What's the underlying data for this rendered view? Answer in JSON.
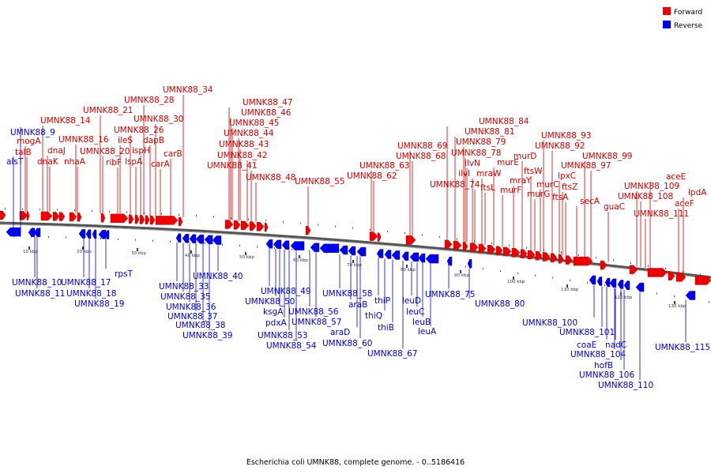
{
  "caption": "Escherichia coli UMNK88, complete genome. - 0..5186416",
  "legend": [
    {
      "label": "Forward",
      "color": "#ee0000"
    },
    {
      "label": "Reverse",
      "color": "#0000ee"
    }
  ],
  "ticks": [
    "10 kbp",
    "20 kbp",
    "30 kbp",
    "40 kbp",
    "50 kbp",
    "60 kbp",
    "70 kbp",
    "80 kbp",
    "90 kbp",
    "100 kbp",
    "110 kbp",
    "120 kbp",
    "130 kbp"
  ],
  "forward_labels": [
    "mogA",
    "talB",
    "dnaJ",
    "dnaK",
    "UMNK88_14",
    "UMNK88_16",
    "nhaA",
    "UMNK88_21",
    "UMNK88_20",
    "ribF",
    "ileS",
    "UMNK88_26",
    "lspA",
    "ispH",
    "UMNK88_28",
    "dapB",
    "UMNK88_30",
    "carA",
    "carB",
    "UMNK88_34",
    "UMNK88_47",
    "UMNK88_46",
    "UMNK88_45",
    "UMNK88_44",
    "UMNK88_43",
    "UMNK88_42",
    "UMNK88_41",
    "UMNK88_48",
    "UMNK88_55",
    "UMNK88_69",
    "UMNK88_68",
    "UMNK88_63",
    "UMNK88_62",
    "UMNK88_84",
    "UMNK88_81",
    "UMNK88_79",
    "UMNK88_78",
    "ilvN",
    "ilvI",
    "UMNK88_74",
    "mraW",
    "ftsL",
    "murE",
    "murF",
    "mraY",
    "murD",
    "ftsW",
    "murG",
    "murC",
    "UMNK88_93",
    "UMNK88_92",
    "lpxC",
    "ftsZ",
    "ftsA",
    "secA",
    "UMNK88_99",
    "UMNK88_97",
    "guaC",
    "aceE",
    "UMNK88_109",
    "UMNK88_108",
    "UMNK88_111",
    "aceF",
    "lpdA"
  ],
  "reverse_labels": [
    "UMNK88_9",
    "alsT",
    "UMNK88_10",
    "UMNK88_11",
    "UMNK88_17",
    "UMNK88_18",
    "UMNK88_19",
    "rpsT",
    "UMNK88_33",
    "UMNK88_35",
    "UMNK88_36",
    "UMNK88_37",
    "UMNK88_38",
    "UMNK88_39",
    "UMNK88_40",
    "UMNK88_49",
    "UMNK88_50",
    "ksgA",
    "pdxA",
    "UMNK88_53",
    "UMNK88_54",
    "UMNK88_56",
    "UMNK88_57",
    "UMNK88_58",
    "araB",
    "araD",
    "UMNK88_60",
    "thiP",
    "thiQ",
    "thiB",
    "UMNK88_67",
    "leuD",
    "leuC",
    "leuB",
    "leuA",
    "UMNK88_75",
    "UMNK88_80",
    "UMNK88_100",
    "UMNK88_101",
    "coaE",
    "nadC",
    "UMNK88_104",
    "hofB",
    "UMNK88_106",
    "UMNK88_110",
    "UMNK88_115"
  ]
}
